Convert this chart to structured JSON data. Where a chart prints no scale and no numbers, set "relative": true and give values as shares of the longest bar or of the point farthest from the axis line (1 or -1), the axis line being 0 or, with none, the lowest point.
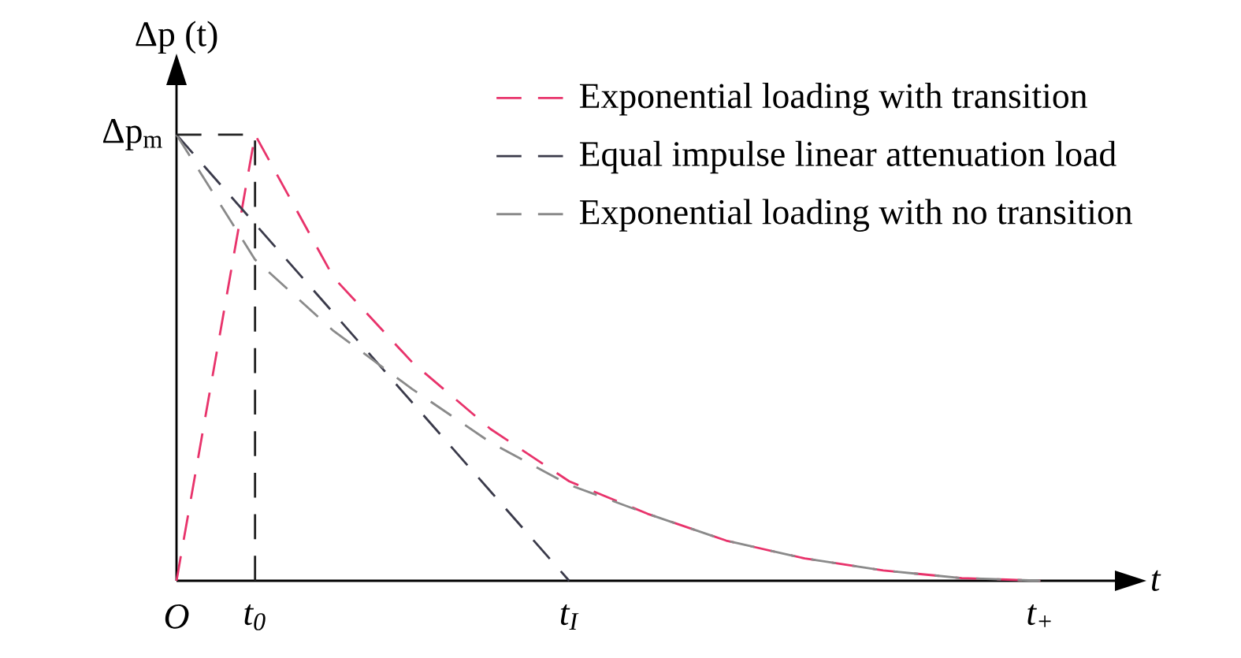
{
  "chart_data": {
    "type": "line",
    "xlabel": "t",
    "ylabel": "Δp (t)",
    "relative": true,
    "categories": [
      "O",
      "t$_{0}$",
      null,
      null,
      null,
      "t$_{I}$",
      null,
      null,
      null,
      null,
      null,
      "t$_{+}$",
      null
    ],
    "annotations": [
      "Δp$_{m}$"
    ],
    "line_style": "dashed",
    "legend": "top right",
    "series": [
      {
        "name": "Exponential loading with transition",
        "color": "#e8336b",
        "values": [
          0,
          1,
          0.68,
          0.49,
          0.34,
          0.223,
          0.15,
          0.09,
          0.05,
          0.023,
          0.006,
          0,
          null
        ]
      },
      {
        "name": "Equal impulse linear attenuation load",
        "color": "#3a3a4a",
        "values": [
          1,
          0.8,
          0.6,
          0.4,
          0.2,
          0,
          null,
          null,
          null,
          null,
          null,
          null,
          null
        ]
      },
      {
        "name": "Exponential loading with no transition",
        "color": "#8a8a8a",
        "values": [
          1,
          0.72,
          0.56,
          0.43,
          0.31,
          0.215,
          0.15,
          0.09,
          0.05,
          0.023,
          0.006,
          0,
          null
        ]
      },
      {
        "color": "#222222",
        "values": [
          1,
          1,
          null,
          null,
          null,
          null,
          null,
          null,
          null,
          null,
          null,
          null,
          null
        ]
      }
    ],
    "ref_lines": [
      {
        "axis": "x",
        "value": "t$_{0}$",
        "color": "#222222"
      }
    ]
  }
}
